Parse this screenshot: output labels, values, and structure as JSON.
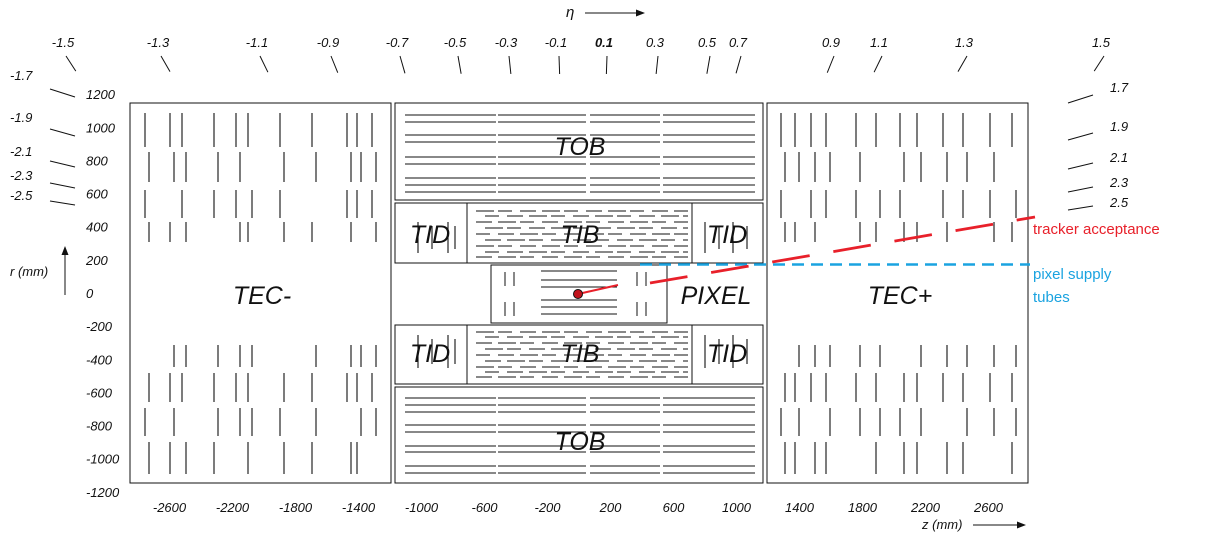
{
  "eta_axis": {
    "symbol": "η",
    "top_values": [
      "-1.5",
      "-1.3",
      "-1.1",
      "-0.9",
      "-0.7",
      "-0.5",
      "-0.3",
      "-0.1",
      "0.1",
      "0.3",
      "0.5",
      "0.7",
      "0.9",
      "1.1",
      "1.3",
      "1.5"
    ],
    "left_values": [
      "-1.7",
      "-1.9",
      "-2.1",
      "-2.3",
      "-2.5"
    ],
    "right_values": [
      "1.7",
      "1.9",
      "2.1",
      "2.3",
      "2.5"
    ]
  },
  "r_axis": {
    "label": "r (mm)",
    "ticks": [
      "1200",
      "1000",
      "800",
      "600",
      "400",
      "200",
      "0",
      "-200",
      "-400",
      "-600",
      "-800",
      "-1000",
      "-1200"
    ]
  },
  "z_axis": {
    "label": "z (mm)",
    "ticks": [
      "-2600",
      "-2200",
      "-1800",
      "-1400",
      "-1000",
      "-600",
      "-200",
      "200",
      "600",
      "1000",
      "1400",
      "1800",
      "2200",
      "2600"
    ]
  },
  "regions": {
    "tec_minus": "TEC-",
    "tec_plus": "TEC+",
    "tob_top": "TOB",
    "tob_bottom": "TOB",
    "tib_top": "TIB",
    "tib_bottom": "TIB",
    "tid_top_left": "TID",
    "tid_top_right": "TID",
    "tid_bottom_left": "TID",
    "tid_bottom_right": "TID",
    "pixel": "PIXEL"
  },
  "annotations": {
    "tracker_acceptance": "tracker acceptance",
    "pixel_supply_line1": "pixel supply",
    "pixel_supply_line2": "tubes"
  },
  "colors": {
    "tracker_acceptance": "#e8202a",
    "pixel_supply": "#1aa3e0",
    "detector_lines": "#111111"
  }
}
